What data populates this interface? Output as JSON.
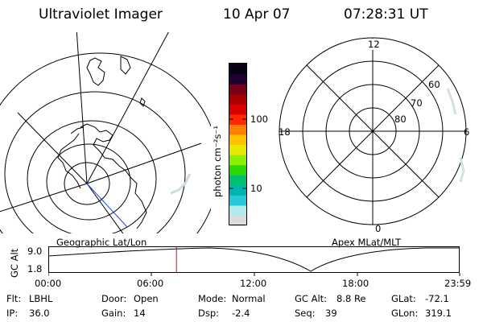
{
  "header": {
    "title": "Ultraviolet Imager",
    "date": "10 Apr 07",
    "time": "07:28:31 UT"
  },
  "left_map": {
    "caption": "Geographic Lat/Lon"
  },
  "right_map": {
    "caption": "Apex MLat/MLT",
    "mlt_labels": [
      "12",
      "6",
      "0",
      "18"
    ],
    "lat_labels": [
      "60",
      "70",
      "80"
    ]
  },
  "colorbar": {
    "unit_label": "photon cm⁻²s⁻¹",
    "tick_labels": [
      "100",
      "10"
    ],
    "colors": [
      "#dcdcdc",
      "#b0ecec",
      "#28c8d8",
      "#00b4b4",
      "#00c070",
      "#28d800",
      "#88f000",
      "#e8e800",
      "#ffc000",
      "#ff8000",
      "#ff2800",
      "#dc0000",
      "#a80000",
      "#780018",
      "#200030",
      "#0a0014"
    ]
  },
  "timeline": {
    "axis_label": "GC Alt",
    "ymax": "9.0",
    "ymin": "1.8",
    "ticks": [
      "00:00",
      "06:00",
      "12:00",
      "18:00",
      "23:59"
    ],
    "current_hour": 7.475,
    "marker_color": "#dd0000"
  },
  "footer": {
    "flt_label": "Flt:",
    "flt_value": "LBHL",
    "ip_label": "IP:",
    "ip_value": "36.0",
    "door_label": "Door:",
    "door_value": "Open",
    "gain_label": "Gain:",
    "gain_value": "14",
    "mode_label": "Mode:",
    "mode_value": "Normal",
    "dsp_label": "Dsp:",
    "dsp_value": "-2.4",
    "gcalt_label": "GC Alt:",
    "gcalt_value": "8.8 Re",
    "seq_label": "Seq:",
    "seq_value": "39",
    "glat_label": "GLat:",
    "glat_value": "-72.1",
    "glon_label": "GLon:",
    "glon_value": "319.1"
  }
}
